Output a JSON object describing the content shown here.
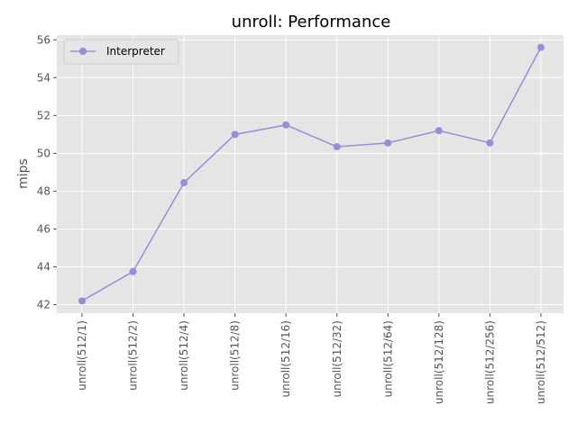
{
  "chart_data": {
    "type": "line",
    "title": "unroll: Performance",
    "xlabel": "",
    "ylabel": "mips",
    "categories": [
      "unroll(512/1)",
      "unroll(512/2)",
      "unroll(512/4)",
      "unroll(512/8)",
      "unroll(512/16)",
      "unroll(512/32)",
      "unroll(512/64)",
      "unroll(512/128)",
      "unroll(512/256)",
      "unroll(512/512)"
    ],
    "series": [
      {
        "name": "Interpreter",
        "color": "#988ED5",
        "values": [
          42.2,
          43.75,
          48.45,
          51.0,
          51.5,
          50.35,
          50.55,
          51.2,
          50.55,
          55.6
        ]
      }
    ],
    "ylim": [
      41.55,
      56.25
    ],
    "yticks": [
      42,
      44,
      46,
      48,
      50,
      52,
      54,
      56
    ],
    "grid": true,
    "legend_position": "top-left",
    "background": "#E5E5E5",
    "grid_color": "#FFFFFF"
  }
}
